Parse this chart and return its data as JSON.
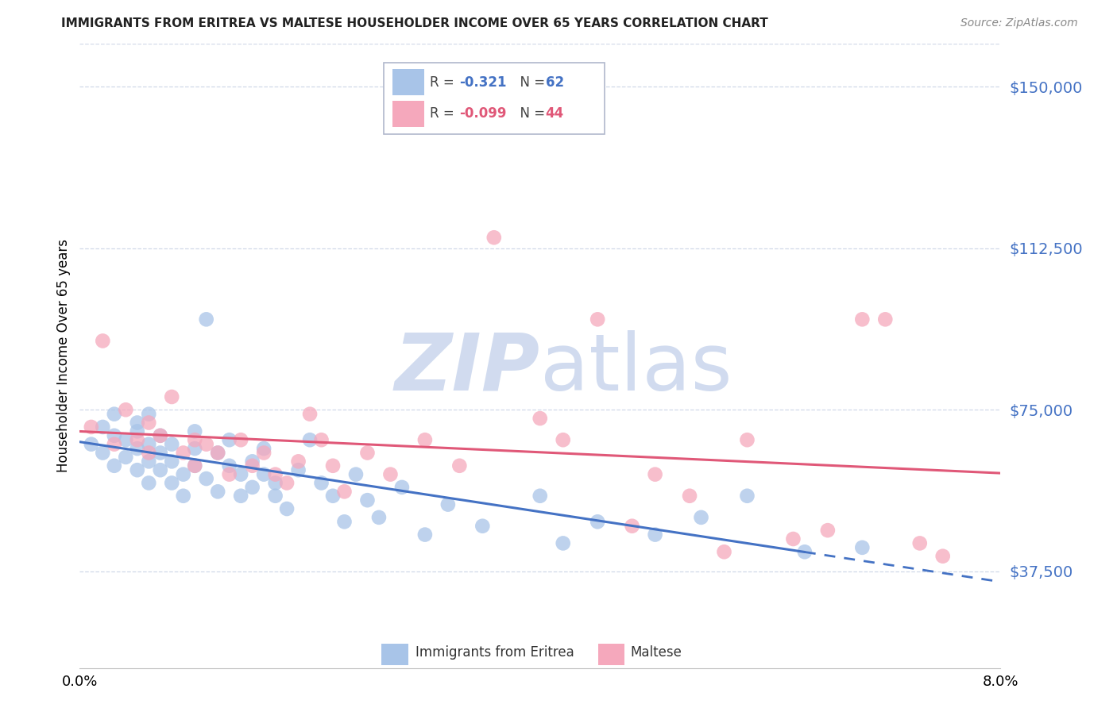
{
  "title": "IMMIGRANTS FROM ERITREA VS MALTESE HOUSEHOLDER INCOME OVER 65 YEARS CORRELATION CHART",
  "source": "Source: ZipAtlas.com",
  "ylabel": "Householder Income Over 65 years",
  "ytick_labels": [
    "$150,000",
    "$112,500",
    "$75,000",
    "$37,500"
  ],
  "ytick_values": [
    150000,
    112500,
    75000,
    37500
  ],
  "ymin": 15000,
  "ymax": 160000,
  "xmin": 0.0,
  "xmax": 0.08,
  "blue_color": "#a8c4e8",
  "pink_color": "#f5a8bc",
  "line_blue": "#4472c4",
  "line_pink": "#e05878",
  "ytick_color": "#4472c4",
  "grid_color": "#d0d8e8",
  "watermark_color": "#ccd8ee",
  "blue_scatter_x": [
    0.001,
    0.002,
    0.002,
    0.003,
    0.003,
    0.003,
    0.004,
    0.004,
    0.005,
    0.005,
    0.005,
    0.005,
    0.006,
    0.006,
    0.006,
    0.006,
    0.007,
    0.007,
    0.007,
    0.008,
    0.008,
    0.008,
    0.009,
    0.009,
    0.01,
    0.01,
    0.01,
    0.011,
    0.011,
    0.012,
    0.012,
    0.013,
    0.013,
    0.014,
    0.014,
    0.015,
    0.015,
    0.016,
    0.016,
    0.017,
    0.017,
    0.018,
    0.019,
    0.02,
    0.021,
    0.022,
    0.023,
    0.024,
    0.025,
    0.026,
    0.028,
    0.03,
    0.032,
    0.035,
    0.04,
    0.042,
    0.045,
    0.05,
    0.054,
    0.058,
    0.063,
    0.068
  ],
  "blue_scatter_y": [
    67000,
    71000,
    65000,
    69000,
    74000,
    62000,
    68000,
    64000,
    70000,
    66000,
    61000,
    72000,
    67000,
    63000,
    58000,
    74000,
    65000,
    61000,
    69000,
    58000,
    63000,
    67000,
    55000,
    60000,
    66000,
    62000,
    70000,
    96000,
    59000,
    65000,
    56000,
    62000,
    68000,
    60000,
    55000,
    63000,
    57000,
    66000,
    60000,
    58000,
    55000,
    52000,
    61000,
    68000,
    58000,
    55000,
    49000,
    60000,
    54000,
    50000,
    57000,
    46000,
    53000,
    48000,
    55000,
    44000,
    49000,
    46000,
    50000,
    55000,
    42000,
    43000
  ],
  "pink_scatter_x": [
    0.001,
    0.002,
    0.003,
    0.004,
    0.005,
    0.006,
    0.006,
    0.007,
    0.008,
    0.009,
    0.01,
    0.01,
    0.011,
    0.012,
    0.013,
    0.014,
    0.015,
    0.016,
    0.017,
    0.018,
    0.019,
    0.02,
    0.021,
    0.022,
    0.023,
    0.025,
    0.027,
    0.03,
    0.033,
    0.036,
    0.04,
    0.042,
    0.045,
    0.048,
    0.05,
    0.053,
    0.056,
    0.058,
    0.062,
    0.065,
    0.068,
    0.07,
    0.073,
    0.075
  ],
  "pink_scatter_y": [
    71000,
    91000,
    67000,
    75000,
    68000,
    72000,
    65000,
    69000,
    78000,
    65000,
    68000,
    62000,
    67000,
    65000,
    60000,
    68000,
    62000,
    65000,
    60000,
    58000,
    63000,
    74000,
    68000,
    62000,
    56000,
    65000,
    60000,
    68000,
    62000,
    115000,
    73000,
    68000,
    96000,
    48000,
    60000,
    55000,
    42000,
    68000,
    45000,
    47000,
    96000,
    96000,
    44000,
    41000
  ]
}
